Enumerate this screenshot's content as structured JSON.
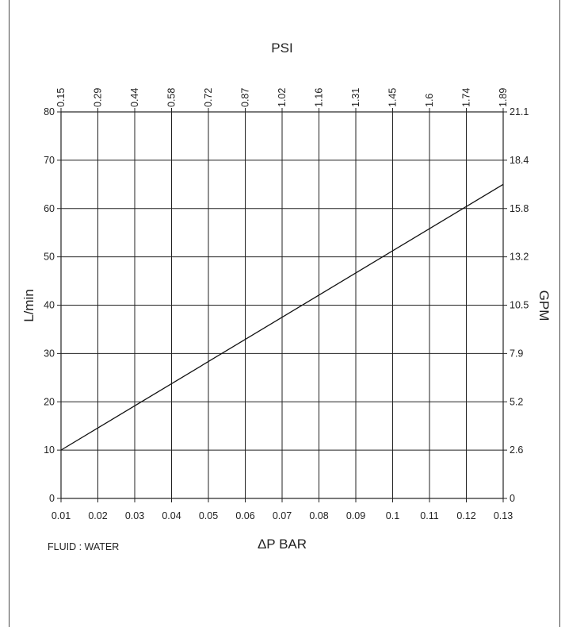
{
  "chart_data": {
    "type": "line",
    "title": "",
    "xlabel": "ΔP  BAR",
    "ylabel": "L/min",
    "x2label": "PSI",
    "y2label": "GPM",
    "xlim": [
      0.01,
      0.13
    ],
    "ylim": [
      0,
      80
    ],
    "grid": true,
    "x_ticks": [
      "0.01",
      "0.02",
      "0.03",
      "0.04",
      "0.05",
      "0.06",
      "0.07",
      "0.08",
      "0.09",
      "0.1",
      "0.11",
      "0.12",
      "0.13"
    ],
    "x2_ticks": [
      "0.15",
      "0.29",
      "0.44",
      "0.58",
      "0.72",
      "0.87",
      "1.02",
      "1.16",
      "1.31",
      "1.45",
      "1.6",
      "1.74",
      "1.89"
    ],
    "y_ticks": [
      "0",
      "10",
      "20",
      "30",
      "40",
      "50",
      "60",
      "70",
      "80"
    ],
    "y2_ticks": [
      "0",
      "2.6",
      "5.2",
      "7.9",
      "10.5",
      "13.2",
      "15.8",
      "18.4",
      "21.1"
    ],
    "series": [
      {
        "x": [
          0.01,
          0.13
        ],
        "y": [
          10,
          65
        ]
      }
    ],
    "annotation": "FLUID : WATER"
  },
  "colors": {
    "line": "#111111",
    "grid": "#222222",
    "frame": "#4a4a4a"
  }
}
